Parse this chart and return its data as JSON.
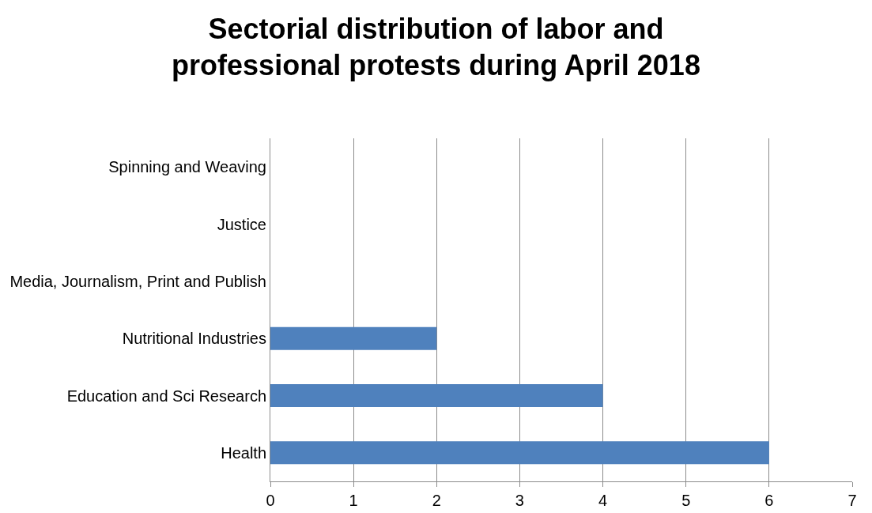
{
  "chart_data": {
    "type": "bar",
    "orientation": "horizontal",
    "title": "Sectorial distribution of labor and professional protests during April 2018",
    "categories": [
      "Spinning and Weaving",
      "Justice",
      "Media, Journalism, Print and Publish",
      "Nutritional Industries",
      "Education and Sci Research",
      "Health"
    ],
    "values": [
      0,
      0,
      0,
      2,
      4,
      6
    ],
    "color": "#4f81bd",
    "xlim": [
      0,
      7
    ],
    "xticks": [
      0,
      1,
      2,
      3,
      4,
      5,
      6,
      7
    ],
    "grid": "x",
    "legend": false
  }
}
